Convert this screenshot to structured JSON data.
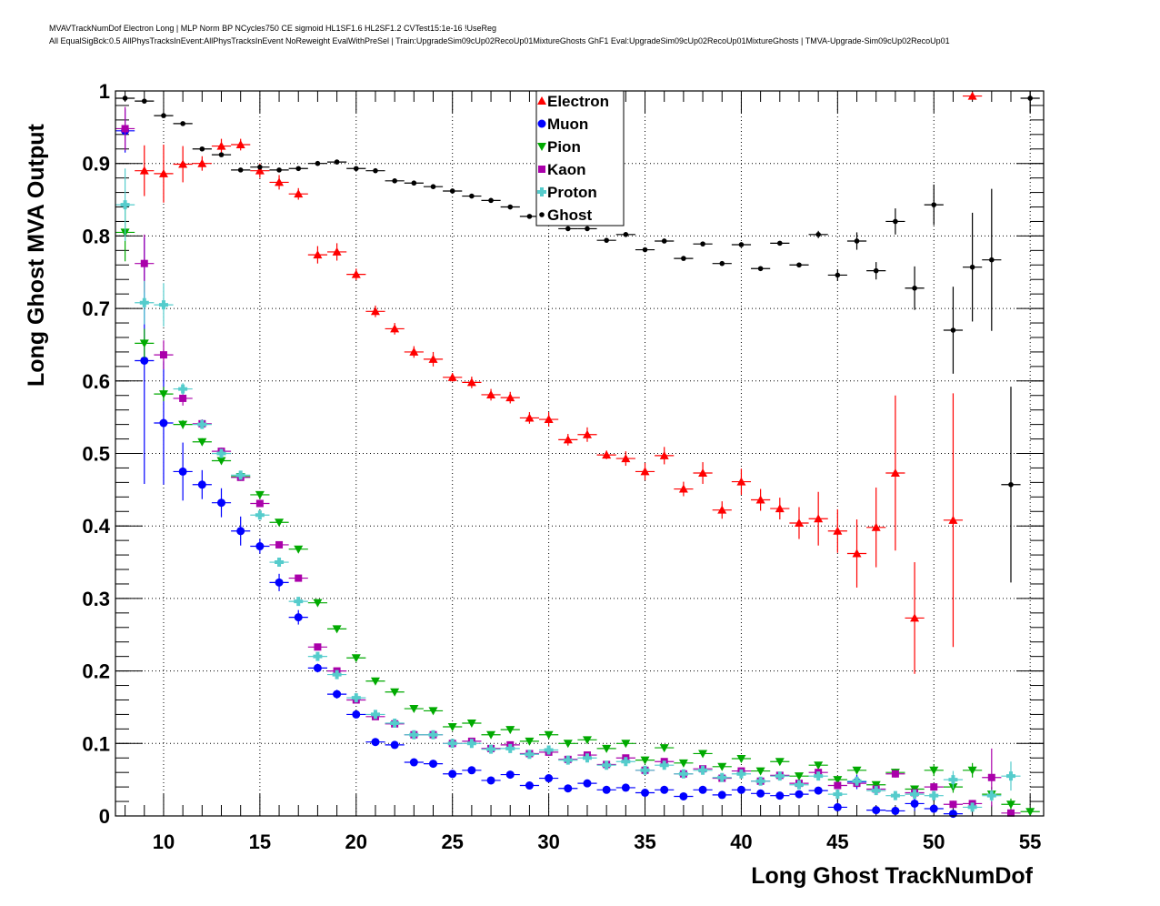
{
  "title_line1": "MVAVTrackNumDof Electron Long | MLP Norm BP NCycles750 CE sigmoid HL1SF1.6 HL2SF1.2 CVTest15:1e-16 !UseReg",
  "title_line2": "All EqualSigBck:0.5 AllPhysTracksInEvent:AllPhysTracksInEvent NoReweight EvalWithPreSel | Train:UpgradeSim09cUp02RecoUp01MixtureGhosts GhF1 Eval:UpgradeSim09cUp02RecoUp01MixtureGhosts | TMVA-Upgrade-Sim09cUp02RecoUp01",
  "chart_data": {
    "type": "scatter",
    "xlabel": "Long Ghost TrackNumDof",
    "ylabel": "Long Ghost MVA Output",
    "xlim": [
      7.5,
      55.7
    ],
    "ylim": [
      0,
      1
    ],
    "grid": true,
    "legend_placement": "top-center",
    "xticks": [
      "10",
      "15",
      "20",
      "25",
      "30",
      "35",
      "40",
      "45",
      "50",
      "55"
    ],
    "yticks": [
      "0",
      "0.1",
      "0.2",
      "0.3",
      "0.4",
      "0.5",
      "0.6",
      "0.7",
      "0.8",
      "0.9",
      "1"
    ],
    "x": [
      8,
      9,
      10,
      11,
      12,
      13,
      14,
      15,
      16,
      17,
      18,
      19,
      20,
      21,
      22,
      23,
      24,
      25,
      26,
      27,
      28,
      29,
      30,
      31,
      32,
      33,
      34,
      35,
      36,
      37,
      38,
      39,
      40,
      41,
      42,
      43,
      44,
      45,
      46,
      47,
      48,
      49,
      50,
      51,
      52,
      53,
      54,
      55
    ],
    "series": [
      {
        "name": "Electron",
        "color": "#ff0000",
        "marker": "triangle-up",
        "values": [
          null,
          0.89,
          0.886,
          0.899,
          0.9,
          0.924,
          0.926,
          0.89,
          0.874,
          0.858,
          0.774,
          0.778,
          0.747,
          0.696,
          0.672,
          0.64,
          0.63,
          0.605,
          0.598,
          0.581,
          0.577,
          0.549,
          0.547,
          0.519,
          0.526,
          0.498,
          0.493,
          0.475,
          0.497,
          0.451,
          0.473,
          0.422,
          0.461,
          0.436,
          0.424,
          0.404,
          0.41,
          0.393,
          0.362,
          0.398,
          0.473,
          0.273,
          null,
          0.408,
          0.993,
          null,
          null,
          null
        ],
        "errors": [
          0,
          0.035,
          0.04,
          0.025,
          0.01,
          0.01,
          0.008,
          0.01,
          0.01,
          0.008,
          0.012,
          0.012,
          0.008,
          0.008,
          0.008,
          0.008,
          0.01,
          0.006,
          0.008,
          0.008,
          0.008,
          0.008,
          0.01,
          0.008,
          0.01,
          0.006,
          0.01,
          0.012,
          0.012,
          0.01,
          0.015,
          0.012,
          0.018,
          0.015,
          0.015,
          0.022,
          0.037,
          0.03,
          0.047,
          0.055,
          0.107,
          0.077,
          0,
          0.175,
          0.005,
          0,
          0,
          0
        ]
      },
      {
        "name": "Muon",
        "color": "#0000ff",
        "marker": "circle",
        "values": [
          0.945,
          0.628,
          0.542,
          0.475,
          0.457,
          0.432,
          0.393,
          0.372,
          0.322,
          0.274,
          0.204,
          0.168,
          0.14,
          0.102,
          0.098,
          0.074,
          0.072,
          0.058,
          0.063,
          0.049,
          0.057,
          0.042,
          0.052,
          0.038,
          0.045,
          0.036,
          0.039,
          0.032,
          0.036,
          0.027,
          0.036,
          0.029,
          0.036,
          0.031,
          0.028,
          0.03,
          0.035,
          0.012,
          0.047,
          0.008,
          0.007,
          0.017,
          0.01,
          0.003,
          null,
          null,
          null,
          null
        ],
        "errors": [
          0.03,
          0.17,
          0.085,
          0.04,
          0.02,
          0.02,
          0.02,
          0.01,
          0.012,
          0.01,
          0.006,
          0.006,
          0.005,
          0.004,
          0.004,
          0.004,
          0.004,
          0.004,
          0.004,
          0.003,
          0.003,
          0.003,
          0.003,
          0.003,
          0.003,
          0.003,
          0.003,
          0.003,
          0.003,
          0.003,
          0.003,
          0.003,
          0.003,
          0.003,
          0.003,
          0.003,
          0.003,
          0.003,
          0.01,
          0.003,
          0.003,
          0.01,
          0.005,
          0.003,
          0,
          0,
          0,
          0
        ]
      },
      {
        "name": "Pion",
        "color": "#00aa00",
        "marker": "triangle-down",
        "values": [
          0.805,
          0.652,
          0.582,
          0.54,
          0.516,
          0.49,
          0.468,
          0.443,
          0.405,
          0.368,
          0.294,
          0.258,
          0.218,
          0.186,
          0.171,
          0.148,
          0.145,
          0.123,
          0.128,
          0.112,
          0.119,
          0.103,
          0.112,
          0.1,
          0.105,
          0.093,
          0.1,
          0.077,
          0.094,
          0.073,
          0.086,
          0.068,
          0.079,
          0.062,
          0.075,
          0.055,
          0.07,
          0.05,
          0.063,
          0.043,
          0.06,
          0.037,
          0.063,
          0.04,
          0.063,
          0.03,
          0.016,
          0.006
        ],
        "errors": [
          0.04,
          0.02,
          0.01,
          0.006,
          0.005,
          0.005,
          0.004,
          0.004,
          0.004,
          0.003,
          0.003,
          0.003,
          0.003,
          0.003,
          0.003,
          0.003,
          0.003,
          0.003,
          0.003,
          0.003,
          0.003,
          0.003,
          0.003,
          0.003,
          0.003,
          0.003,
          0.003,
          0.003,
          0.003,
          0.003,
          0.003,
          0.003,
          0.003,
          0.003,
          0.003,
          0.003,
          0.003,
          0.003,
          0.003,
          0.003,
          0.005,
          0.005,
          0.008,
          0.008,
          0.01,
          0.01,
          0.008,
          0.003
        ]
      },
      {
        "name": "Kaon",
        "color": "#aa00aa",
        "marker": "square",
        "values": [
          0.948,
          0.762,
          0.636,
          0.576,
          0.541,
          0.503,
          0.467,
          0.431,
          0.374,
          0.328,
          0.233,
          0.2,
          0.16,
          0.137,
          0.127,
          0.112,
          0.112,
          0.1,
          0.103,
          0.093,
          0.098,
          0.086,
          0.088,
          0.078,
          0.084,
          0.071,
          0.08,
          0.063,
          0.075,
          0.058,
          0.065,
          0.052,
          0.062,
          0.048,
          0.056,
          0.045,
          0.06,
          0.042,
          0.045,
          0.037,
          0.058,
          0.032,
          0.04,
          0.016,
          0.017,
          0.053,
          0.004,
          null
        ],
        "errors": [
          0.03,
          0.04,
          0.02,
          0.01,
          0.006,
          0.005,
          0.004,
          0.004,
          0.004,
          0.003,
          0.003,
          0.003,
          0.003,
          0.003,
          0.003,
          0.003,
          0.003,
          0.003,
          0.003,
          0.003,
          0.003,
          0.003,
          0.003,
          0.003,
          0.003,
          0.003,
          0.003,
          0.003,
          0.003,
          0.003,
          0.003,
          0.003,
          0.003,
          0.003,
          0.003,
          0.003,
          0.003,
          0.003,
          0.003,
          0.003,
          0.005,
          0.005,
          0.005,
          0.005,
          0.005,
          0.04,
          0.003,
          0
        ]
      },
      {
        "name": "Proton",
        "color": "#55cccc",
        "marker": "cross",
        "values": [
          0.843,
          0.708,
          0.705,
          0.589,
          0.54,
          0.5,
          0.47,
          0.415,
          0.35,
          0.296,
          0.22,
          0.195,
          0.163,
          0.14,
          0.128,
          0.112,
          0.112,
          0.1,
          0.1,
          0.092,
          0.093,
          0.085,
          0.091,
          0.077,
          0.08,
          0.07,
          0.075,
          0.063,
          0.07,
          0.058,
          0.063,
          0.053,
          0.058,
          0.048,
          0.055,
          0.043,
          0.055,
          0.03,
          0.048,
          0.035,
          0.028,
          0.03,
          0.028,
          0.05,
          0.012,
          0.028,
          0.055,
          null
        ],
        "errors": [
          0.05,
          0.03,
          0.03,
          0.008,
          0.005,
          0.005,
          0.004,
          0.004,
          0.004,
          0.003,
          0.003,
          0.003,
          0.003,
          0.003,
          0.003,
          0.003,
          0.003,
          0.003,
          0.003,
          0.003,
          0.003,
          0.003,
          0.003,
          0.003,
          0.003,
          0.003,
          0.003,
          0.003,
          0.003,
          0.003,
          0.003,
          0.003,
          0.003,
          0.003,
          0.003,
          0.003,
          0.003,
          0.003,
          0.003,
          0.003,
          0.005,
          0.005,
          0.005,
          0.012,
          0.005,
          0.008,
          0.02,
          0
        ]
      },
      {
        "name": "Ghost",
        "color": "#000000",
        "marker": "dot",
        "values": [
          0.99,
          0.986,
          0.966,
          0.955,
          0.92,
          0.912,
          0.891,
          0.895,
          0.891,
          0.893,
          0.9,
          0.902,
          0.893,
          0.89,
          0.876,
          0.873,
          0.868,
          0.862,
          0.855,
          0.849,
          0.84,
          0.827,
          0.826,
          0.81,
          0.81,
          0.794,
          0.802,
          0.781,
          0.793,
          0.769,
          0.789,
          0.762,
          0.788,
          0.755,
          0.79,
          0.76,
          0.802,
          0.746,
          0.793,
          0.752,
          0.82,
          0.728,
          0.843,
          0.67,
          0.757,
          0.767,
          0.457,
          0.99
        ],
        "errors": [
          0.003,
          0.003,
          0.003,
          0.003,
          0.003,
          0.003,
          0.003,
          0.003,
          0.003,
          0.003,
          0.003,
          0.003,
          0.003,
          0.003,
          0.003,
          0.003,
          0.003,
          0.003,
          0.003,
          0.003,
          0.003,
          0.003,
          0.003,
          0.003,
          0.003,
          0.003,
          0.003,
          0.003,
          0.003,
          0.003,
          0.003,
          0.003,
          0.003,
          0.003,
          0.003,
          0.003,
          0.005,
          0.008,
          0.012,
          0.012,
          0.018,
          0.03,
          0.028,
          0.06,
          0.075,
          0.098,
          0.135,
          0.02
        ]
      }
    ]
  }
}
